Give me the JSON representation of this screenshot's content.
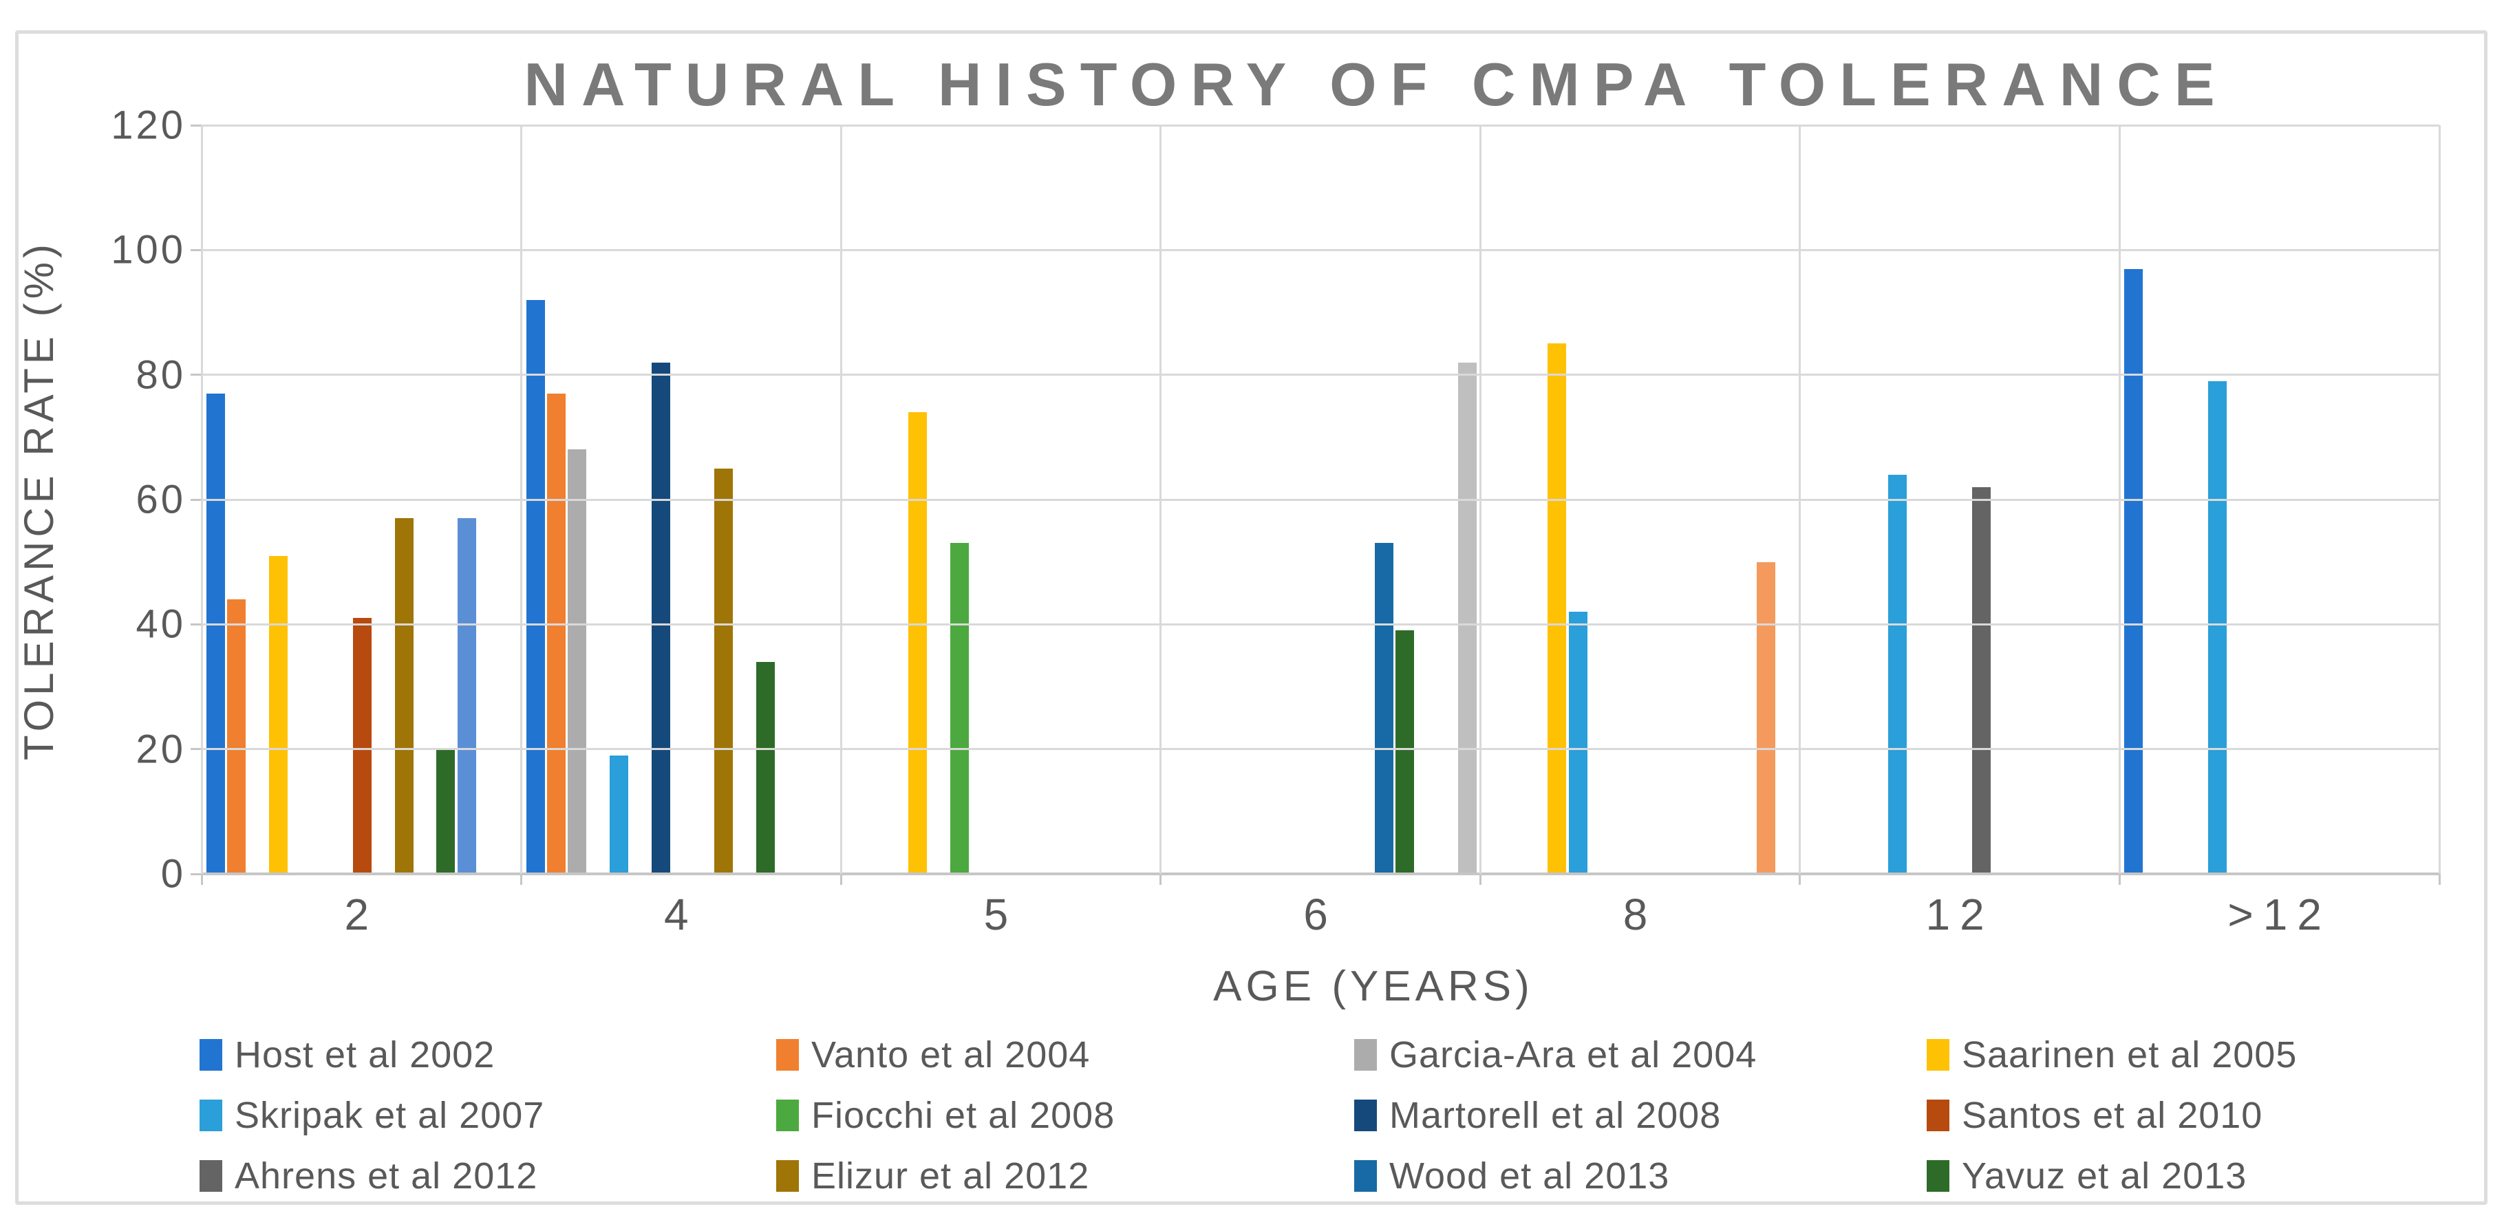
{
  "chart_data": {
    "type": "bar",
    "title": "NATURAL HISTORY OF CMPA TOLERANCE",
    "xlabel": "AGE (YEARS)",
    "ylabel": "TOLERANCE RATE (%)",
    "ylim": [
      0,
      120
    ],
    "y_ticks": [
      0,
      20,
      40,
      60,
      80,
      100,
      120
    ],
    "grid": true,
    "legend_position": "bottom",
    "categories": [
      "2",
      "4",
      "5",
      "6",
      "8",
      "12",
      ">12"
    ],
    "series": [
      {
        "key": "host",
        "name": "Host et al 2002",
        "color": "#2274D1",
        "slot": 1,
        "in_legend": true,
        "values": {
          "2": 77,
          "4": 92,
          ">12": 97
        }
      },
      {
        "key": "vanto",
        "name": "Vanto et al 2004",
        "color": "#F0802F",
        "slot": 2,
        "in_legend": true,
        "values": {
          "2": 44,
          "4": 77
        }
      },
      {
        "key": "garcia",
        "name": "Garcia-Ara et al 2004",
        "color": "#ACACAC",
        "slot": 3,
        "in_legend": true,
        "values": {
          "4": 68
        }
      },
      {
        "key": "saarinen",
        "name": "Saarinen et al 2005",
        "color": "#FFC103",
        "slot": 4,
        "in_legend": true,
        "values": {
          "2": 51,
          "5": 74,
          "8": 85
        }
      },
      {
        "key": "skripak",
        "name": "Skripak et al 2007",
        "color": "#2A9FD9",
        "slot": 5,
        "in_legend": true,
        "values": {
          "4": 19,
          "8": 42,
          "12": 64,
          ">12": 79
        }
      },
      {
        "key": "fiocchi",
        "name": "Fiocchi et al 2008",
        "color": "#4CA93F",
        "slot": 6,
        "in_legend": true,
        "values": {
          "5": 53
        }
      },
      {
        "key": "martorell",
        "name": "Martorell et al 2008",
        "color": "#16497B",
        "slot": 7,
        "in_legend": true,
        "values": {
          "4": 82
        }
      },
      {
        "key": "santos",
        "name": "Santos et al 2010",
        "color": "#B74A0E",
        "slot": 8,
        "in_legend": true,
        "values": {
          "2": 41
        }
      },
      {
        "key": "ahrens",
        "name": "Ahrens et al 2012",
        "color": "#646464",
        "slot": 9,
        "in_legend": true,
        "values": {
          "12": 62
        }
      },
      {
        "key": "elizur",
        "name": "Elizur et al 2012",
        "color": "#9F7507",
        "slot": 10,
        "in_legend": true,
        "values": {
          "2": 57,
          "4": 65
        }
      },
      {
        "key": "wood",
        "name": "Wood et al 2013",
        "color": "#176AA5",
        "slot": 11,
        "in_legend": true,
        "values": {
          "6": 53
        }
      },
      {
        "key": "yavuz",
        "name": "Yavuz et al 2013",
        "color": "#2E6B28",
        "slot": 12,
        "in_legend": true,
        "values": {
          "2": 20,
          "4": 34,
          "6": 39
        }
      },
      {
        "key": "unlabeled-light-blue",
        "name": "",
        "color": "#5B8FD5",
        "slot": 13,
        "in_legend": false,
        "values": {
          "2": 57
        }
      },
      {
        "key": "unlabeled-light-orange",
        "name": "",
        "color": "#F59A5D",
        "slot": 14,
        "in_legend": false,
        "values": {
          "8": 50
        }
      },
      {
        "key": "unlabeled-light-gray",
        "name": "",
        "color": "#BFBFBF",
        "slot": 15,
        "in_legend": false,
        "values": {
          "6": 82
        }
      }
    ]
  },
  "colors": {
    "background": "#FFFFFF",
    "frame_border": "#DDDDDD",
    "gridline": "#D9D9D9",
    "axis_line": "#C6C6C6",
    "axis_text": "#595959",
    "title_text": "#7A7A7A"
  }
}
